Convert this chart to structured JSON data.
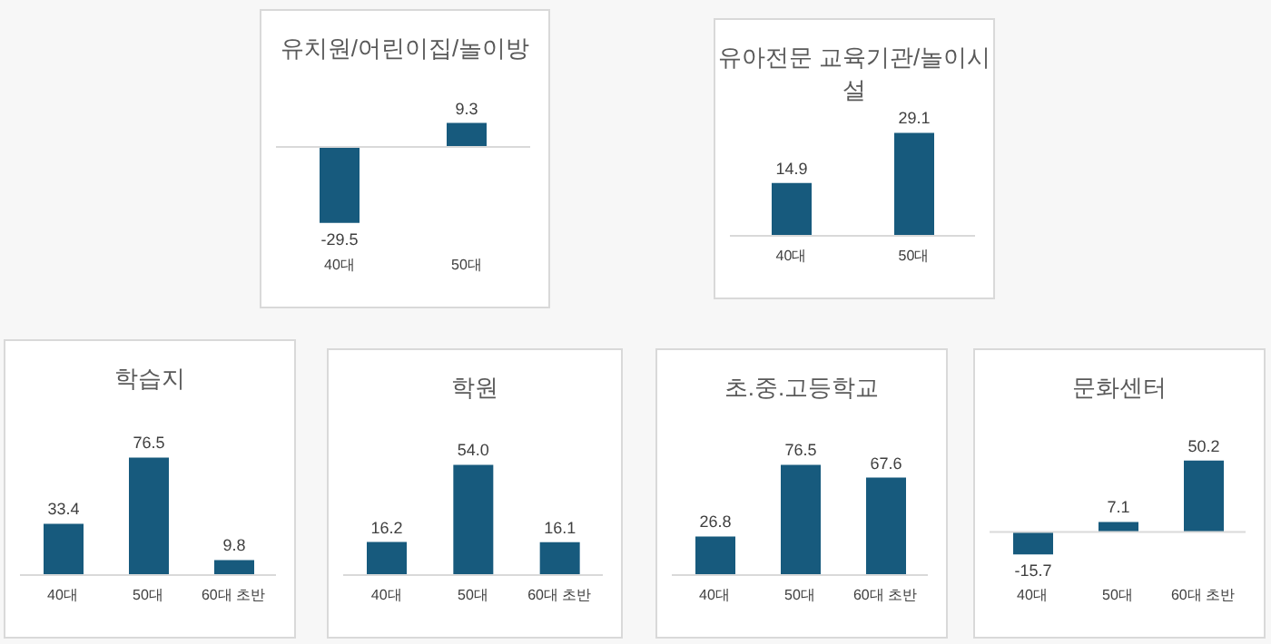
{
  "chart_data": [
    {
      "type": "bar",
      "title": "유치원/어린이집/놀이방",
      "categories": [
        "40대",
        "50대"
      ],
      "values": [
        -29.5,
        9.3
      ],
      "color": "#175a7d",
      "data_labels": true
    },
    {
      "type": "bar",
      "title": "유아전문 교육기관/놀이시설",
      "categories": [
        "40대",
        "50대"
      ],
      "values": [
        14.9,
        29.1
      ],
      "color": "#175a7d",
      "data_labels": true
    },
    {
      "type": "bar",
      "title": "학습지",
      "categories": [
        "40대",
        "50대",
        "60대 초반"
      ],
      "values": [
        33.4,
        76.5,
        9.8
      ],
      "color": "#175a7d",
      "data_labels": true
    },
    {
      "type": "bar",
      "title": "학원",
      "categories": [
        "40대",
        "50대",
        "60대 초반"
      ],
      "values": [
        16.2,
        54.0,
        16.1
      ],
      "value_labels": [
        "16.2",
        "54.0",
        "16.1"
      ],
      "color": "#175a7d"
    },
    {
      "type": "bar",
      "title": "초.중.고등학교",
      "categories": [
        "40대",
        "50대",
        "60대 초반"
      ],
      "values": [
        26.8,
        76.5,
        67.6
      ],
      "color": "#175a7d",
      "data_labels": true
    },
    {
      "type": "bar",
      "title": "문화센터",
      "categories": [
        "40대",
        "50대",
        "60대 초반"
      ],
      "values": [
        -15.7,
        7.1,
        50.2
      ],
      "color": "#175a7d",
      "data_labels": true
    }
  ]
}
